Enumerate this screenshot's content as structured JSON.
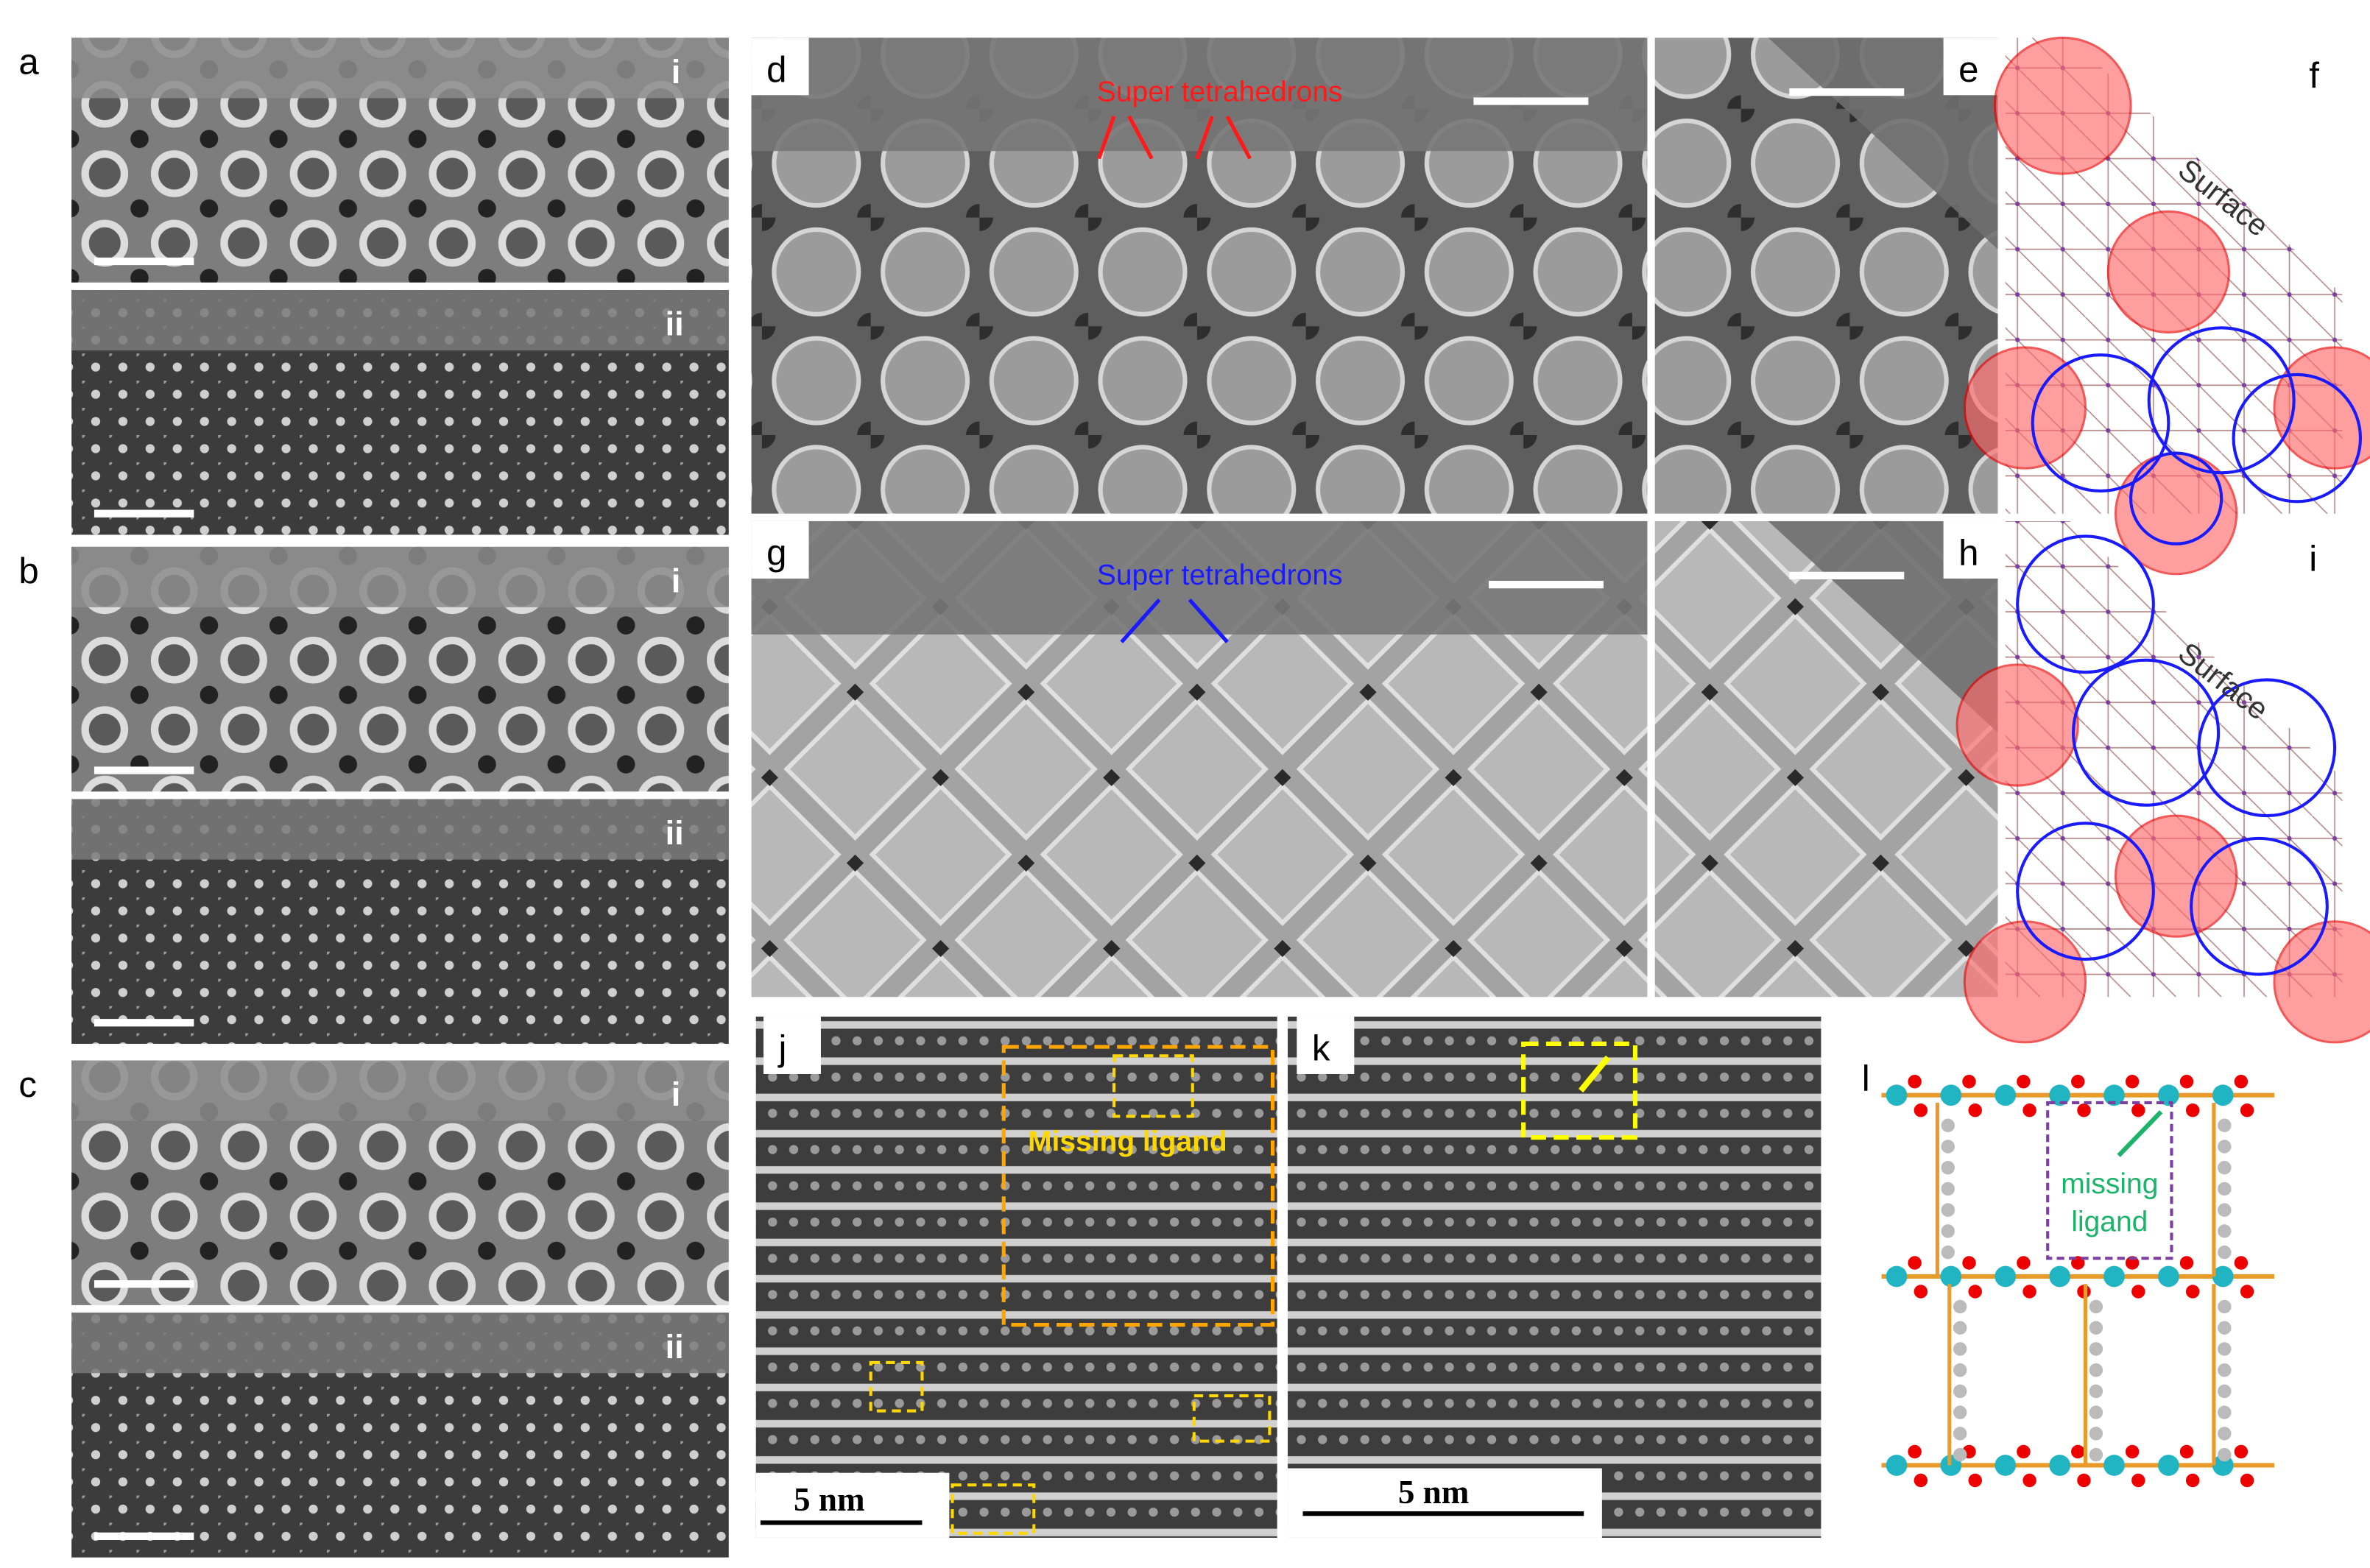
{
  "panels": {
    "a": {
      "label": "a",
      "parts": [
        "i",
        "ii"
      ]
    },
    "b": {
      "label": "b",
      "parts": [
        "i",
        "ii"
      ]
    },
    "c": {
      "label": "c",
      "parts": [
        "i",
        "ii"
      ]
    },
    "d": {
      "label": "d",
      "annotation": "Super tetrahedrons"
    },
    "e": {
      "label": "e"
    },
    "f": {
      "label": "f",
      "annotation": "Surface"
    },
    "g": {
      "label": "g",
      "annotation": "Super tetrahedrons"
    },
    "h": {
      "label": "h"
    },
    "i": {
      "label": "i",
      "annotation": "Surface"
    },
    "j": {
      "label": "j",
      "annotation": "Missing ligand",
      "scale_bar": "5 nm"
    },
    "k": {
      "label": "k",
      "scale_bar": "5 nm"
    },
    "l": {
      "label": "l",
      "annotation": [
        "missing",
        "ligand"
      ]
    }
  }
}
